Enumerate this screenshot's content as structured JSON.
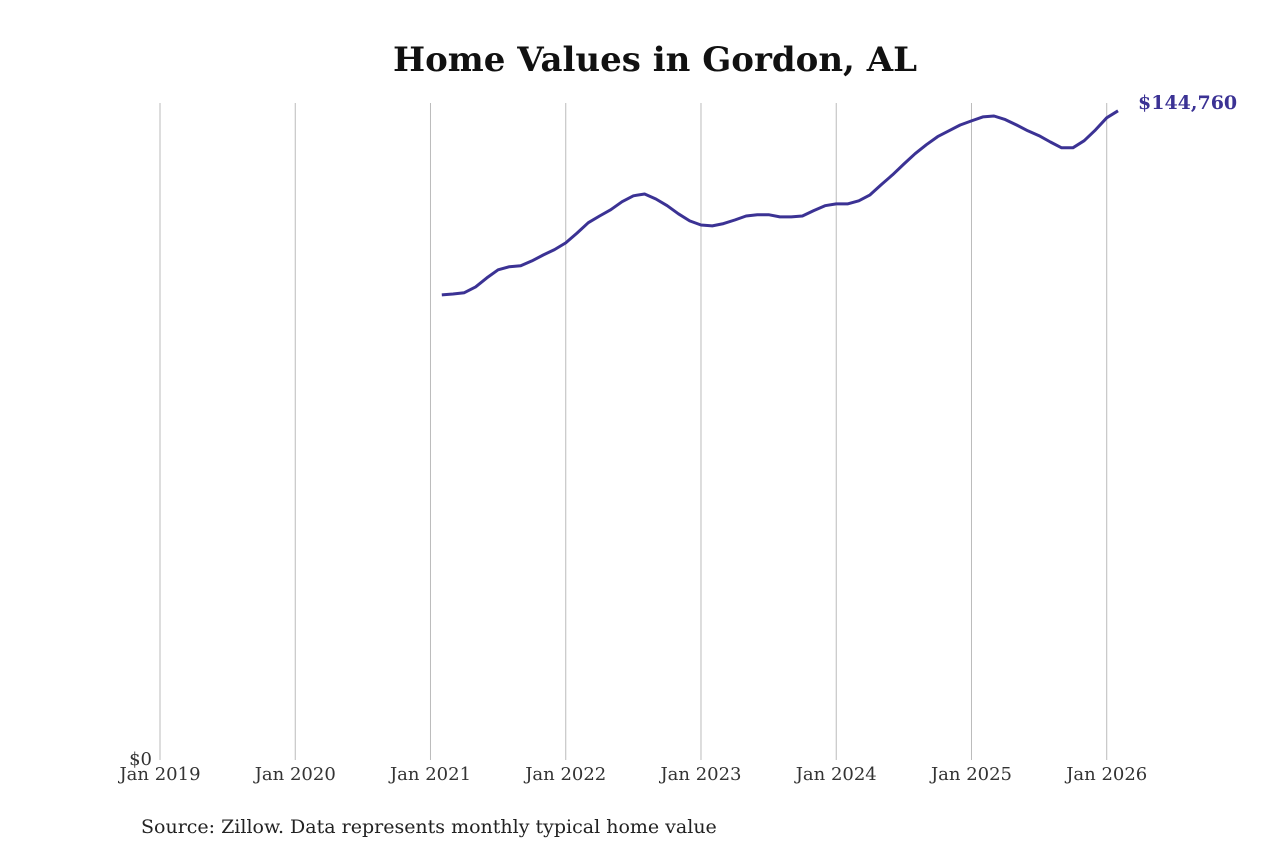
{
  "chart_data": {
    "type": "line",
    "title": "Home Values in Gordon, AL",
    "source": "Source: Zillow. Data represents monthly typical home value",
    "x": [
      "2021-02",
      "2021-03",
      "2021-04",
      "2021-05",
      "2021-06",
      "2021-07",
      "2021-08",
      "2021-09",
      "2021-10",
      "2021-11",
      "2021-12",
      "2022-01",
      "2022-02",
      "2022-03",
      "2022-04",
      "2022-05",
      "2022-06",
      "2022-07",
      "2022-08",
      "2022-09",
      "2022-10",
      "2022-11",
      "2022-12",
      "2023-01",
      "2023-02",
      "2023-03",
      "2023-04",
      "2023-05",
      "2023-06",
      "2023-07",
      "2023-08",
      "2023-09",
      "2023-10",
      "2023-11",
      "2023-12",
      "2024-01",
      "2024-02",
      "2024-03",
      "2024-04",
      "2024-05",
      "2024-06",
      "2024-07",
      "2024-08",
      "2024-09",
      "2024-10",
      "2024-11",
      "2024-12",
      "2025-01",
      "2025-02",
      "2025-03",
      "2025-04",
      "2025-05",
      "2025-06",
      "2025-07",
      "2025-08",
      "2025-09",
      "2025-10",
      "2025-11",
      "2025-12",
      "2026-01",
      "2026-02"
    ],
    "series": [
      {
        "name": "Gordon, AL",
        "color": "#3b3294",
        "values": [
          103700,
          103900,
          104200,
          105500,
          107500,
          109300,
          110000,
          110200,
          111300,
          112600,
          113800,
          115300,
          117500,
          119800,
          121300,
          122700,
          124500,
          125800,
          126200,
          125100,
          123600,
          121800,
          120200,
          119300,
          119100,
          119600,
          120400,
          121300,
          121600,
          121600,
          121100,
          121100,
          121300,
          122500,
          123600,
          124000,
          124000,
          124700,
          126000,
          128300,
          130500,
          132900,
          135200,
          137200,
          139000,
          140300,
          141600,
          142500,
          143400,
          143600,
          142800,
          141600,
          140300,
          139200,
          137800,
          136500,
          136500,
          138100,
          140500,
          143200,
          144760
        ],
        "value_labels": [
          null,
          null,
          null,
          null,
          null,
          null,
          null,
          null,
          null,
          null,
          null,
          null,
          null,
          null,
          null,
          null,
          null,
          null,
          null,
          null,
          null,
          null,
          null,
          null,
          null,
          null,
          null,
          null,
          null,
          null,
          null,
          null,
          null,
          null,
          null,
          null,
          null,
          null,
          null,
          null,
          null,
          null,
          null,
          null,
          null,
          null,
          null,
          null,
          null,
          null,
          null,
          null,
          null,
          null,
          null,
          null,
          null,
          null,
          null,
          null,
          "$144,760"
        ]
      }
    ],
    "xlim": [
      "2019-01",
      "2026-02"
    ],
    "xticks": [
      {
        "value": "2019-01",
        "label": "Jan 2019"
      },
      {
        "value": "2020-01",
        "label": "Jan 2020"
      },
      {
        "value": "2021-01",
        "label": "Jan 2021"
      },
      {
        "value": "2022-01",
        "label": "Jan 2022"
      },
      {
        "value": "2023-01",
        "label": "Jan 2023"
      },
      {
        "value": "2024-01",
        "label": "Jan 2024"
      },
      {
        "value": "2025-01",
        "label": "Jan 2025"
      },
      {
        "value": "2026-01",
        "label": "Jan 2026"
      }
    ],
    "ylim": [
      0,
      146500
    ],
    "yticks": [
      {
        "value": 0,
        "label": "$0"
      }
    ],
    "grid": true
  }
}
